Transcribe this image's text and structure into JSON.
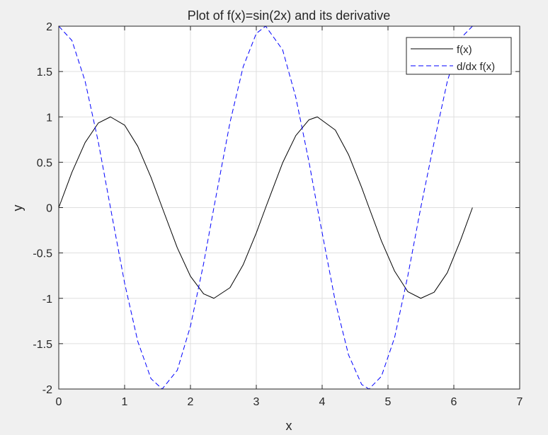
{
  "chart_data": {
    "type": "line",
    "title": "Plot of f(x)=sin(2x) and its derivative",
    "xlabel": "x",
    "ylabel": "y",
    "xlim": [
      0,
      7
    ],
    "ylim": [
      -2,
      2
    ],
    "xticks": [
      0,
      1,
      2,
      3,
      4,
      5,
      6,
      7
    ],
    "yticks": [
      -2,
      -1.5,
      -1,
      -0.5,
      0,
      0.5,
      1,
      1.5,
      2
    ],
    "xtick_labels": [
      "0",
      "1",
      "2",
      "3",
      "4",
      "5",
      "6",
      "7"
    ],
    "ytick_labels": [
      "-2",
      "-1.5",
      "-1",
      "-0.5",
      "0",
      "0.5",
      "1",
      "1.5",
      "2"
    ],
    "grid": true,
    "legend_position": "top-right",
    "series": [
      {
        "name": "f(x)",
        "color": "#000000",
        "style": "solid",
        "x": [
          0,
          0.2,
          0.4,
          0.6,
          0.785,
          1.0,
          1.2,
          1.4,
          1.571,
          1.8,
          2.0,
          2.2,
          2.356,
          2.6,
          2.8,
          3.0,
          3.142,
          3.4,
          3.6,
          3.8,
          3.927,
          4.2,
          4.4,
          4.6,
          4.712,
          4.9,
          5.1,
          5.3,
          5.498,
          5.7,
          5.9,
          6.1,
          6.283
        ],
        "y": [
          0,
          0.389,
          0.717,
          0.932,
          1.0,
          0.909,
          0.675,
          0.335,
          0,
          -0.443,
          -0.757,
          -0.951,
          -1.0,
          -0.883,
          -0.631,
          -0.279,
          0,
          0.494,
          0.794,
          0.968,
          1.0,
          0.855,
          0.585,
          0.222,
          0,
          -0.367,
          -0.7,
          -0.926,
          -1.0,
          -0.933,
          -0.719,
          -0.364,
          0
        ]
      },
      {
        "name": "d/dx f(x)",
        "color": "#0000ff",
        "style": "dashed",
        "x": [
          0,
          0.2,
          0.4,
          0.6,
          0.785,
          1.0,
          1.2,
          1.4,
          1.571,
          1.8,
          2.0,
          2.2,
          2.356,
          2.6,
          2.8,
          3.0,
          3.142,
          3.4,
          3.6,
          3.8,
          3.927,
          4.2,
          4.4,
          4.6,
          4.712,
          4.9,
          5.1,
          5.3,
          5.498,
          5.7,
          5.9,
          6.1,
          6.283,
          6.5
        ],
        "y": [
          2.0,
          1.842,
          1.393,
          0.725,
          0,
          -0.832,
          -1.475,
          -1.885,
          -2.0,
          -1.793,
          -1.307,
          -0.617,
          0,
          0.937,
          1.551,
          1.92,
          2.0,
          1.739,
          1.215,
          0.504,
          0,
          -1.037,
          -1.622,
          -1.95,
          -2.0,
          -1.86,
          -1.434,
          -0.756,
          0,
          0.719,
          1.388,
          1.865,
          2.0,
          2.0
        ]
      }
    ]
  }
}
